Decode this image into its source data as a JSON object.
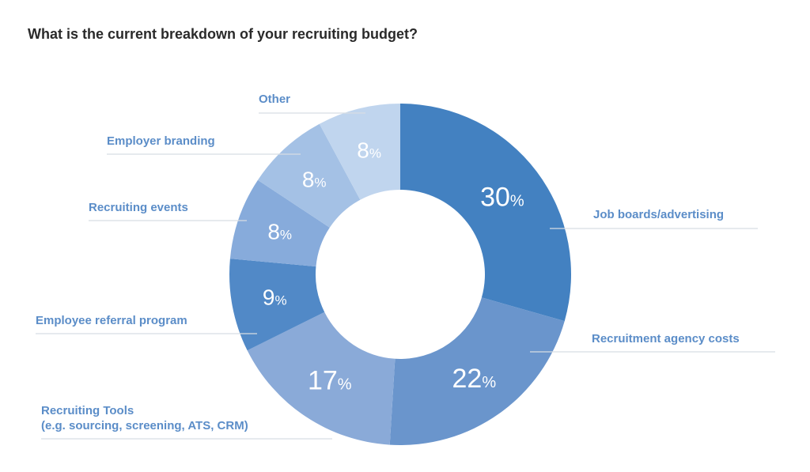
{
  "chart_data": {
    "type": "pie",
    "variant": "donut",
    "title": "What is the current breakdown of your recruiting budget?",
    "unit": "%",
    "slices": [
      {
        "label": "Job boards/advertising",
        "value": 30,
        "color": "#4381c1"
      },
      {
        "label": "Recruitment agency costs",
        "value": 22,
        "color": "#6a95cc"
      },
      {
        "label": "Recruiting Tools",
        "label_line2": "(e.g. sourcing, screening, ATS, CRM)",
        "value": 17,
        "color": "#8aaad8"
      },
      {
        "label": "Employee referral program",
        "value": 9,
        "color": "#5189c7"
      },
      {
        "label": "Recruiting events",
        "value": 8,
        "color": "#87abdb"
      },
      {
        "label": "Employer branding",
        "value": 8,
        "color": "#a4c1e5"
      },
      {
        "label": "Other",
        "value": 8,
        "color": "#c0d5ee"
      }
    ],
    "start": "top",
    "direction": "clockwise",
    "label_color": "#5b8dc8"
  }
}
